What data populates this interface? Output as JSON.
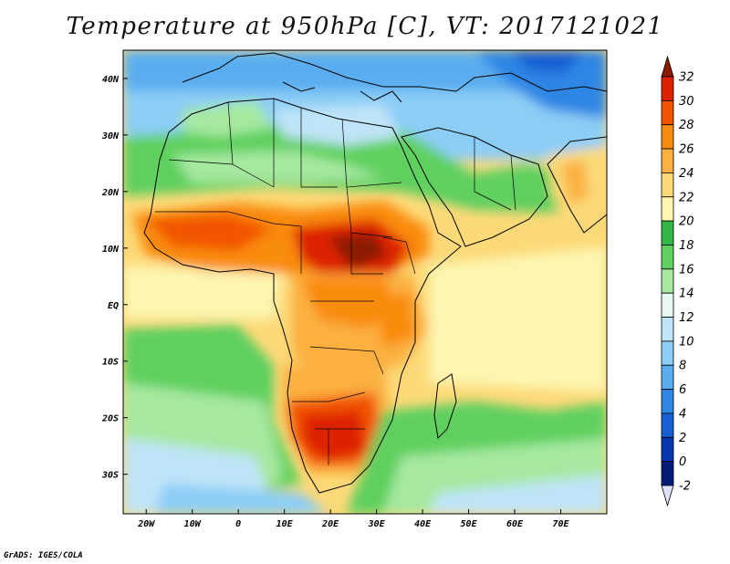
{
  "title": "Temperature at 950hPa [C], VT: 2017121021",
  "credit": "GrADS: IGES/COLA",
  "map": {
    "type": "heatmap",
    "variable": "Temperature at 950hPa",
    "units": "C",
    "region": "Africa",
    "lon_range": [
      -25,
      80
    ],
    "lat_range": [
      -37,
      45
    ],
    "lon_ticks": [
      "20W",
      "10W",
      "0",
      "10E",
      "20E",
      "30E",
      "40E",
      "50E",
      "60E",
      "70E"
    ],
    "lat_ticks": [
      "40N",
      "30N",
      "20N",
      "10N",
      "EQ",
      "10S",
      "20S",
      "30S"
    ],
    "colorbar": {
      "labels": [
        "32",
        "30",
        "28",
        "26",
        "24",
        "22",
        "20",
        "18",
        "16",
        "14",
        "12",
        "10",
        "8",
        "6",
        "4",
        "2",
        "0",
        "-2"
      ],
      "colors": [
        "#8b1a00",
        "#dd2200",
        "#f15400",
        "#f98b10",
        "#fbb040",
        "#fcd978",
        "#fdf5b0",
        "#33b847",
        "#5fd05f",
        "#a6e8a0",
        "#e6f8f0",
        "#bfe4f8",
        "#8ccdf6",
        "#5aaef0",
        "#2f86e4",
        "#1660d4",
        "#0838b0",
        "#061a78",
        "#e0e0fa"
      ]
    }
  }
}
